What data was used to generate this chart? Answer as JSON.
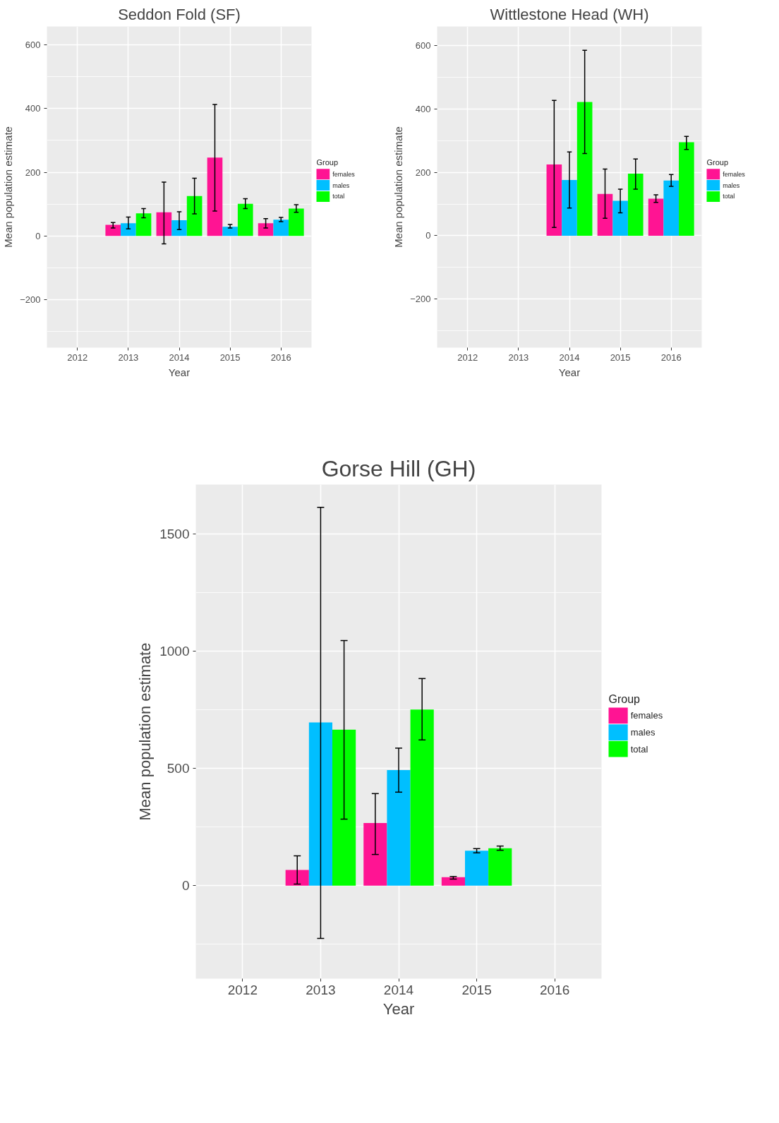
{
  "chart_data": [
    {
      "type": "bar",
      "title": "Seddon Fold (SF)",
      "xlabel": "Year",
      "ylabel": "Mean population estimate",
      "legend_title": "Group",
      "categories": [
        "2012",
        "2013",
        "2014",
        "2015",
        "2016"
      ],
      "ylim": [
        -351,
        658
      ],
      "yticks": [
        -200,
        0,
        200,
        400,
        600
      ],
      "grid": true,
      "legend": "right",
      "series": [
        {
          "name": "females",
          "color": "#ff1493",
          "values": [
            null,
            35,
            74,
            246,
            40
          ],
          "errors": [
            null,
            [
              25,
              42
            ],
            [
              -25,
              169
            ],
            [
              78,
              413
            ],
            [
              25,
              54
            ]
          ]
        },
        {
          "name": "males",
          "color": "#00bfff",
          "values": [
            null,
            40,
            49,
            29,
            51
          ],
          "errors": [
            null,
            [
              22,
              59
            ],
            [
              20,
              76
            ],
            [
              25,
              36
            ],
            [
              45,
              58
            ]
          ]
        },
        {
          "name": "total",
          "color": "#00ff00",
          "values": [
            null,
            71,
            125,
            101,
            86
          ],
          "errors": [
            null,
            [
              57,
              86
            ],
            [
              69,
              181
            ],
            [
              86,
              117
            ],
            [
              74,
              98
            ]
          ]
        }
      ]
    },
    {
      "type": "bar",
      "title": "Wittlestone Head (WH)",
      "xlabel": "Year",
      "ylabel": "Mean population estimate",
      "legend_title": "Group",
      "categories": [
        "2012",
        "2013",
        "2014",
        "2015",
        "2016"
      ],
      "ylim": [
        -353,
        660
      ],
      "yticks": [
        -200,
        0,
        200,
        400,
        600
      ],
      "grid": true,
      "legend": "right",
      "series": [
        {
          "name": "females",
          "color": "#ff1493",
          "values": [
            null,
            null,
            225,
            132,
            117
          ],
          "errors": [
            null,
            null,
            [
              26,
              427
            ],
            [
              55,
              210
            ],
            [
              105,
              129
            ]
          ]
        },
        {
          "name": "males",
          "color": "#00bfff",
          "values": [
            null,
            null,
            176,
            110,
            174
          ],
          "errors": [
            null,
            null,
            [
              87,
              264
            ],
            [
              72,
              147
            ],
            [
              156,
              193
            ]
          ]
        },
        {
          "name": "total",
          "color": "#00ff00",
          "values": [
            null,
            null,
            422,
            196,
            295
          ],
          "errors": [
            null,
            null,
            [
              259,
              585
            ],
            [
              147,
              242
            ],
            [
              272,
              313
            ]
          ]
        }
      ]
    },
    {
      "type": "bar",
      "title": "Gorse Hill (GH)",
      "xlabel": "Year",
      "ylabel": "Mean population estimate",
      "legend_title": "Group",
      "categories": [
        "2012",
        "2013",
        "2014",
        "2015",
        "2016"
      ],
      "ylim": [
        -397,
        1712
      ],
      "yticks": [
        0,
        500,
        1000,
        1500
      ],
      "grid": true,
      "legend": "right",
      "series": [
        {
          "name": "females",
          "color": "#ff1493",
          "values": [
            null,
            67,
            267,
            36,
            null
          ],
          "errors": [
            null,
            [
              7,
              127
            ],
            [
              133,
              393
            ],
            [
              28,
              39
            ],
            null
          ]
        },
        {
          "name": "males",
          "color": "#00bfff",
          "values": [
            null,
            697,
            493,
            149,
            null
          ],
          "errors": [
            null,
            [
              -225,
              1615
            ],
            [
              399,
              587
            ],
            [
              140,
              158
            ],
            null
          ]
        },
        {
          "name": "total",
          "color": "#00ff00",
          "values": [
            null,
            666,
            752,
            160,
            null
          ],
          "errors": [
            null,
            [
              284,
              1046
            ],
            [
              622,
              884
            ],
            [
              151,
              169
            ],
            null
          ]
        }
      ]
    }
  ]
}
